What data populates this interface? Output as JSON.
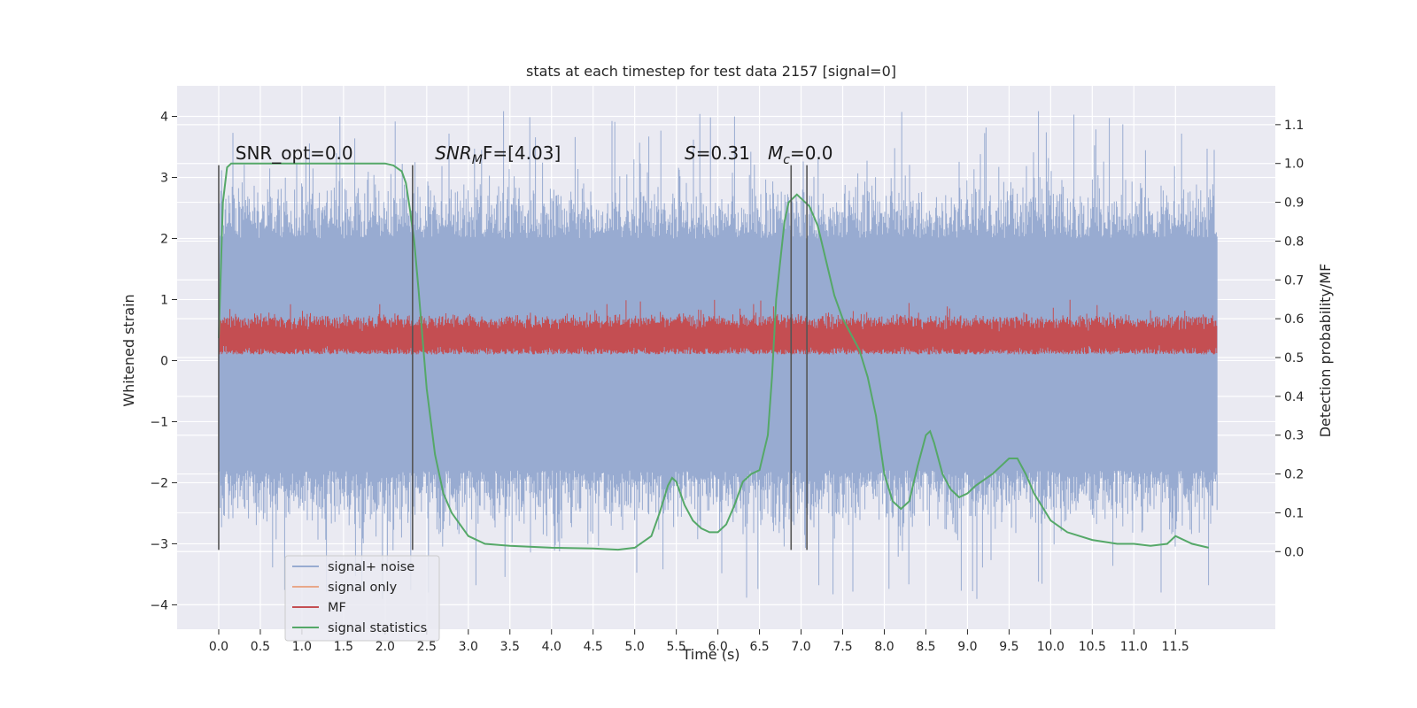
{
  "chart_data": {
    "type": "line",
    "title": "stats at each timestep for test data 2157 [signal=0]",
    "xlabel": "Time (s)",
    "ylabel": "Whitened strain",
    "y2label": "Detection probability/MF",
    "xlim": [
      -0.5,
      12.7
    ],
    "ylim": [
      -4.4,
      4.5
    ],
    "y2lim": [
      -0.2,
      1.2
    ],
    "xticks": [
      0.0,
      0.5,
      1.0,
      1.5,
      2.0,
      2.5,
      3.0,
      3.5,
      4.0,
      4.5,
      5.0,
      5.5,
      6.0,
      6.5,
      7.0,
      7.5,
      8.0,
      8.5,
      9.0,
      9.5,
      10.0,
      10.5,
      11.0,
      11.5
    ],
    "xtick_labels": [
      "0.0",
      "0.5",
      "1.0",
      "1.5",
      "2.0",
      "2.5",
      "3.0",
      "3.5",
      "4.0",
      "4.5",
      "5.0",
      "5.5",
      "6.0",
      "6.5",
      "7.0",
      "7.5",
      "8.0",
      "8.5",
      "9.0",
      "9.5",
      "10.0",
      "10.5",
      "11.0",
      "11.5"
    ],
    "yticks": [
      -4,
      -3,
      -2,
      -1,
      0,
      1,
      2,
      3,
      4
    ],
    "ytick_labels": [
      "−4",
      "−3",
      "−2",
      "−1",
      "0",
      "1",
      "2",
      "3",
      "4"
    ],
    "y2ticks": [
      0.0,
      0.1,
      0.2,
      0.3,
      0.4,
      0.5,
      0.6,
      0.7,
      0.8,
      0.9,
      1.0,
      1.1
    ],
    "y2tick_labels": [
      "0.0",
      "0.1",
      "0.2",
      "0.3",
      "0.4",
      "0.5",
      "0.6",
      "0.7",
      "0.8",
      "0.9",
      "1.0",
      "1.1"
    ],
    "grid": true,
    "legend_position": "lower-left",
    "colors": {
      "plot_bg": "#eaeaf2",
      "grid": "#ffffff",
      "noise": "#98abd1",
      "signal_only": "#e8a88a",
      "mf": "#c44e52",
      "stats": "#55a868",
      "marker": "#555555"
    },
    "noise_band": {
      "series": "signal+ noise",
      "x_range": [
        0.0,
        12.0
      ],
      "typical_range": [
        -1.8,
        2.0
      ],
      "max_peak": 4.1,
      "min_trough": -3.95
    },
    "mf_band": {
      "series": "MF",
      "x_range": [
        0.0,
        12.0
      ],
      "typical_range": [
        0.1,
        0.65
      ],
      "max_peak": 1.0
    },
    "signal_statistics": {
      "series": "signal statistics",
      "axis": "right",
      "x": [
        0.0,
        0.05,
        0.1,
        0.15,
        0.2,
        0.3,
        0.5,
        1.0,
        1.5,
        2.0,
        2.1,
        2.2,
        2.25,
        2.3,
        2.35,
        2.4,
        2.45,
        2.5,
        2.6,
        2.7,
        2.8,
        3.0,
        3.2,
        3.5,
        4.0,
        4.5,
        4.8,
        5.0,
        5.2,
        5.3,
        5.4,
        5.45,
        5.5,
        5.55,
        5.6,
        5.7,
        5.8,
        5.9,
        6.0,
        6.1,
        6.2,
        6.3,
        6.4,
        6.5,
        6.6,
        6.65,
        6.7,
        6.8,
        6.85,
        6.9,
        6.95,
        7.0,
        7.1,
        7.2,
        7.3,
        7.4,
        7.5,
        7.6,
        7.7,
        7.8,
        7.9,
        8.0,
        8.1,
        8.2,
        8.3,
        8.4,
        8.5,
        8.55,
        8.6,
        8.7,
        8.8,
        8.9,
        9.0,
        9.1,
        9.3,
        9.5,
        9.6,
        9.7,
        9.8,
        10.0,
        10.2,
        10.5,
        10.8,
        11.0,
        11.2,
        11.4,
        11.5,
        11.7,
        11.9
      ],
      "y": [
        0.55,
        0.9,
        0.99,
        1.0,
        1.0,
        1.0,
        1.0,
        1.0,
        1.0,
        1.0,
        0.995,
        0.98,
        0.95,
        0.88,
        0.8,
        0.68,
        0.55,
        0.42,
        0.25,
        0.15,
        0.1,
        0.04,
        0.02,
        0.015,
        0.01,
        0.008,
        0.005,
        0.01,
        0.04,
        0.1,
        0.17,
        0.19,
        0.18,
        0.15,
        0.12,
        0.08,
        0.06,
        0.05,
        0.05,
        0.07,
        0.12,
        0.18,
        0.2,
        0.21,
        0.3,
        0.45,
        0.65,
        0.85,
        0.9,
        0.91,
        0.92,
        0.91,
        0.89,
        0.84,
        0.75,
        0.66,
        0.6,
        0.56,
        0.52,
        0.45,
        0.35,
        0.2,
        0.13,
        0.11,
        0.13,
        0.22,
        0.3,
        0.31,
        0.28,
        0.2,
        0.16,
        0.14,
        0.15,
        0.17,
        0.2,
        0.24,
        0.24,
        0.2,
        0.15,
        0.08,
        0.05,
        0.03,
        0.02,
        0.02,
        0.015,
        0.02,
        0.04,
        0.02,
        0.01
      ]
    },
    "markers": [
      {
        "x": 0.0,
        "y": [
          -3.1,
          3.2
        ]
      },
      {
        "x": 2.33,
        "y": [
          -3.1,
          3.2
        ]
      },
      {
        "x": 6.88,
        "y": [
          -3.1,
          3.2
        ]
      },
      {
        "x": 7.07,
        "y": [
          -3.1,
          3.2
        ]
      }
    ],
    "annotations": [
      {
        "text": "SNR_opt=0.0",
        "x": 0.2,
        "y": 3.3
      },
      {
        "text": "SNR_MF=[4.03]",
        "x": 2.6,
        "y": 3.3,
        "base": "SNR",
        "sub": "M",
        "rest": "F=[4.03]",
        "italic_base": true
      },
      {
        "text": "S=0.31",
        "x": 5.6,
        "y": 3.3,
        "base": "S",
        "rest": "=0.31",
        "italic_base": true
      },
      {
        "text": "M_c=0.0",
        "x": 6.6,
        "y": 3.3,
        "base": "M",
        "sub": "c",
        "rest": "=0.0",
        "italic_base": true
      }
    ],
    "legend": [
      {
        "label": "signal+ noise",
        "color": "#98abd1"
      },
      {
        "label": "signal only",
        "color": "#e8a88a"
      },
      {
        "label": "MF",
        "color": "#c44e52"
      },
      {
        "label": "signal statistics",
        "color": "#55a868"
      }
    ]
  }
}
